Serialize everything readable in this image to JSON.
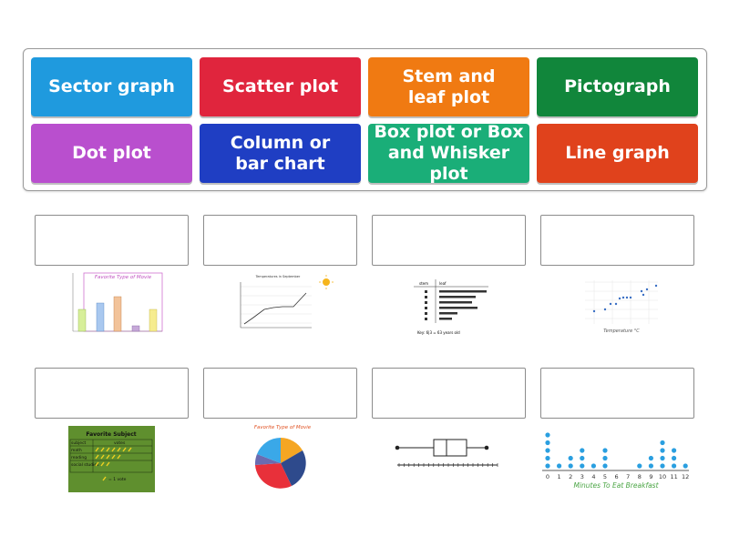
{
  "tiles": [
    {
      "label": "Sector graph",
      "color": "#1f9ade"
    },
    {
      "label": "Scatter plot",
      "color": "#e0253d"
    },
    {
      "label": "Stem and\nleaf plot",
      "color": "#f07a12"
    },
    {
      "label": "Pictograph",
      "color": "#11863b"
    },
    {
      "label": "Dot plot",
      "color": "#b94fce"
    },
    {
      "label": "Column or\nbar chart",
      "color": "#1f3ec3"
    },
    {
      "label": "Box plot or Box\nand Whisker plot",
      "color": "#1aae78"
    },
    {
      "label": "Line graph",
      "color": "#e0421c"
    }
  ],
  "thumbnails": {
    "bar_title": "Favorite Type of Movie",
    "line_title": "Temperatures in September",
    "stem_header": [
      "stem",
      "leaf"
    ],
    "stem_key": "Key: 6|3 = 63 years old",
    "scatter_xlabel": "Temperature °C",
    "pictograph_title": "Favorite Subject",
    "pictograph_header": [
      "subject",
      "votes"
    ],
    "pictograph_rows": [
      "math",
      "reading",
      "social studies"
    ],
    "pictograph_key": "= 1 vote",
    "pie_title": "Favorite Type of Movie",
    "dot_title": "Minutes To Eat Breakfast",
    "dot_axis": [
      0,
      1,
      2,
      3,
      4,
      5,
      6,
      7,
      8,
      9,
      10,
      11,
      12
    ],
    "dot_counts": [
      5,
      1,
      2,
      3,
      1,
      3,
      0,
      0,
      1,
      2,
      4,
      3,
      1
    ]
  }
}
